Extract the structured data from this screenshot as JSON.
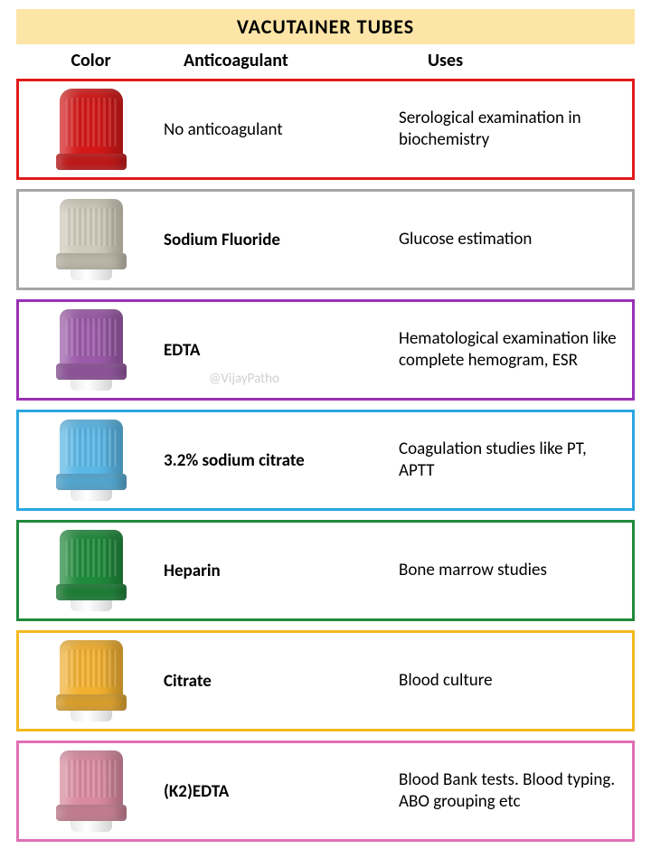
{
  "title": "VACUTAINER TUBES",
  "headers": {
    "color": "Color",
    "anticoagulant": "Anticoagulant",
    "uses": "Uses"
  },
  "watermark": "@VijayPatho",
  "rows": [
    {
      "border_color": "#e21b1b",
      "cap_color": "#d31818",
      "cap_style": "red",
      "anticoagulant": "No anticoagulant",
      "anticoagulant_bold": false,
      "uses": "Serological examination in biochemistry",
      "show_neck": false,
      "show_watermark": false
    },
    {
      "border_color": "#a6a6a6",
      "cap_color": "#cfcab9",
      "cap_style": "normal",
      "anticoagulant": "Sodium Fluoride",
      "anticoagulant_bold": true,
      "uses": "Glucose estimation",
      "show_neck": true,
      "show_watermark": false
    },
    {
      "border_color": "#9b30b5",
      "cap_color": "#9b5aa8",
      "cap_style": "normal",
      "anticoagulant": "EDTA",
      "anticoagulant_bold": true,
      "uses": "Hematological examination like complete hemogram, ESR",
      "show_neck": true,
      "show_watermark": true
    },
    {
      "border_color": "#2aa7e1",
      "cap_color": "#5ab7e6",
      "cap_style": "normal",
      "anticoagulant": "3.2% sodium citrate",
      "anticoagulant_bold": true,
      "uses": "Coagulation studies like PT, APTT",
      "show_neck": true,
      "show_watermark": false
    },
    {
      "border_color": "#1f8a3b",
      "cap_color": "#1f8a3b",
      "cap_style": "normal",
      "anticoagulant": "Heparin",
      "anticoagulant_bold": true,
      "uses": "Bone marrow studies",
      "show_neck": true,
      "show_watermark": false
    },
    {
      "border_color": "#f2b91e",
      "cap_color": "#f2b030",
      "cap_style": "normal",
      "anticoagulant": "Citrate",
      "anticoagulant_bold": true,
      "uses": "Blood culture",
      "show_neck": true,
      "show_watermark": false
    },
    {
      "border_color": "#e070b5",
      "cap_color": "#d98aa0",
      "cap_style": "normal",
      "anticoagulant": "(K2)EDTA",
      "anticoagulant_bold": true,
      "uses": "Blood Bank tests. Blood typing. ABO grouping etc",
      "show_neck": true,
      "show_watermark": false
    }
  ]
}
